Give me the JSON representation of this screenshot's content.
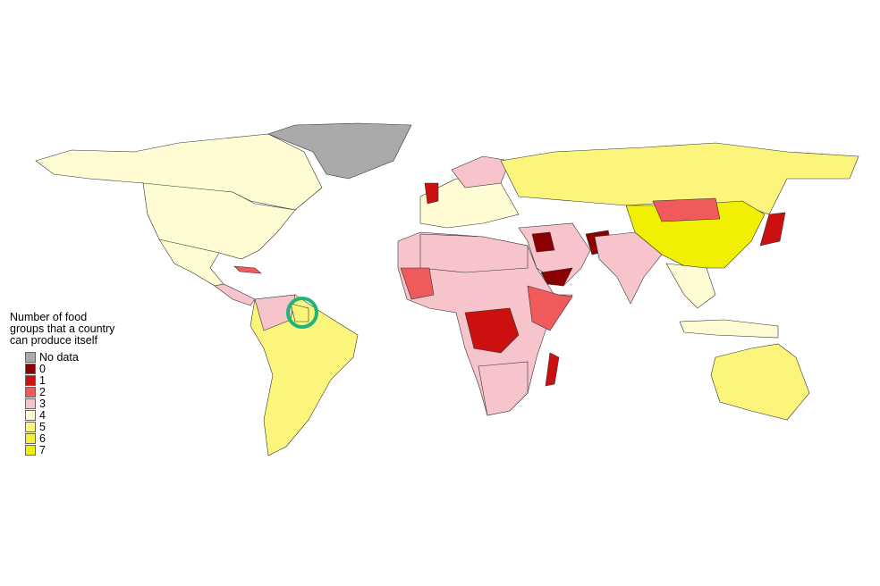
{
  "legend": {
    "title": "Number of food groups that a country can produce itself",
    "items": [
      {
        "label": "No data",
        "color": "#aaaaaa"
      },
      {
        "label": "0",
        "color": "#8b0000"
      },
      {
        "label": "1",
        "color": "#cc1010"
      },
      {
        "label": "2",
        "color": "#f05a5a"
      },
      {
        "label": "3",
        "color": "#f8c4cc"
      },
      {
        "label": "4",
        "color": "#fffbd2"
      },
      {
        "label": "5",
        "color": "#fbf57c"
      },
      {
        "label": "6",
        "color": "#f5ef3c"
      },
      {
        "label": "7",
        "color": "#f0f000"
      }
    ]
  }
}
